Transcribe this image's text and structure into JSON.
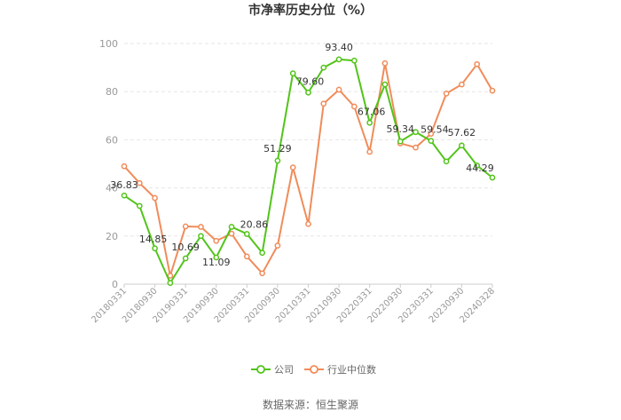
{
  "chart_data": {
    "type": "line",
    "title": "市净率历史分位（%）",
    "source": "数据来源：恒生聚源",
    "ylim": [
      0,
      100
    ],
    "yticks": [
      0,
      20,
      40,
      60,
      80,
      100
    ],
    "grid": "horizontal-dashed",
    "legend_position": "bottom",
    "x": [
      "20180331",
      "20180630",
      "20180930",
      "20181231",
      "20190331",
      "20190630",
      "20190930",
      "20191231",
      "20200331",
      "20200630",
      "20200930",
      "20201231",
      "20210331",
      "20210630",
      "20210930",
      "20211231",
      "20220331",
      "20220630",
      "20220930",
      "20221231",
      "20230331",
      "20230630",
      "20230930",
      "20231231",
      "20240328"
    ],
    "x_tick_labels": [
      "20180331",
      "20180930",
      "20190331",
      "20190930",
      "20200331",
      "20200930",
      "20210331",
      "20210930",
      "20220331",
      "20220930",
      "20230331",
      "20230930",
      "20240328"
    ],
    "series": [
      {
        "name": "公司",
        "color": "#52c41a",
        "values": [
          36.83,
          32.5,
          14.85,
          0.5,
          10.69,
          20.0,
          11.09,
          23.8,
          20.86,
          13.0,
          51.29,
          87.6,
          79.6,
          90.0,
          93.4,
          92.9,
          67.06,
          83.0,
          59.34,
          63.2,
          59.54,
          51.0,
          57.62,
          49.3,
          44.29
        ],
        "labels": {
          "0": "36.83",
          "2": "14.85",
          "4": "10.69",
          "6": "11.09",
          "8": "20.86",
          "10": "51.29",
          "12": "79.60",
          "14": "93.40",
          "16": "67.06",
          "18": "59.34",
          "20": "59.54",
          "22": "57.62",
          "24": "44.29"
        }
      },
      {
        "name": "行业中位数",
        "color": "#f08c5a",
        "values": [
          49.0,
          42.0,
          35.8,
          3.5,
          24.0,
          23.8,
          18.0,
          21.0,
          11.5,
          4.5,
          16.0,
          48.5,
          25.0,
          75.0,
          80.8,
          73.8,
          55.0,
          91.8,
          58.5,
          56.8,
          62.5,
          79.2,
          83.0,
          91.4,
          80.4
        ]
      }
    ]
  }
}
